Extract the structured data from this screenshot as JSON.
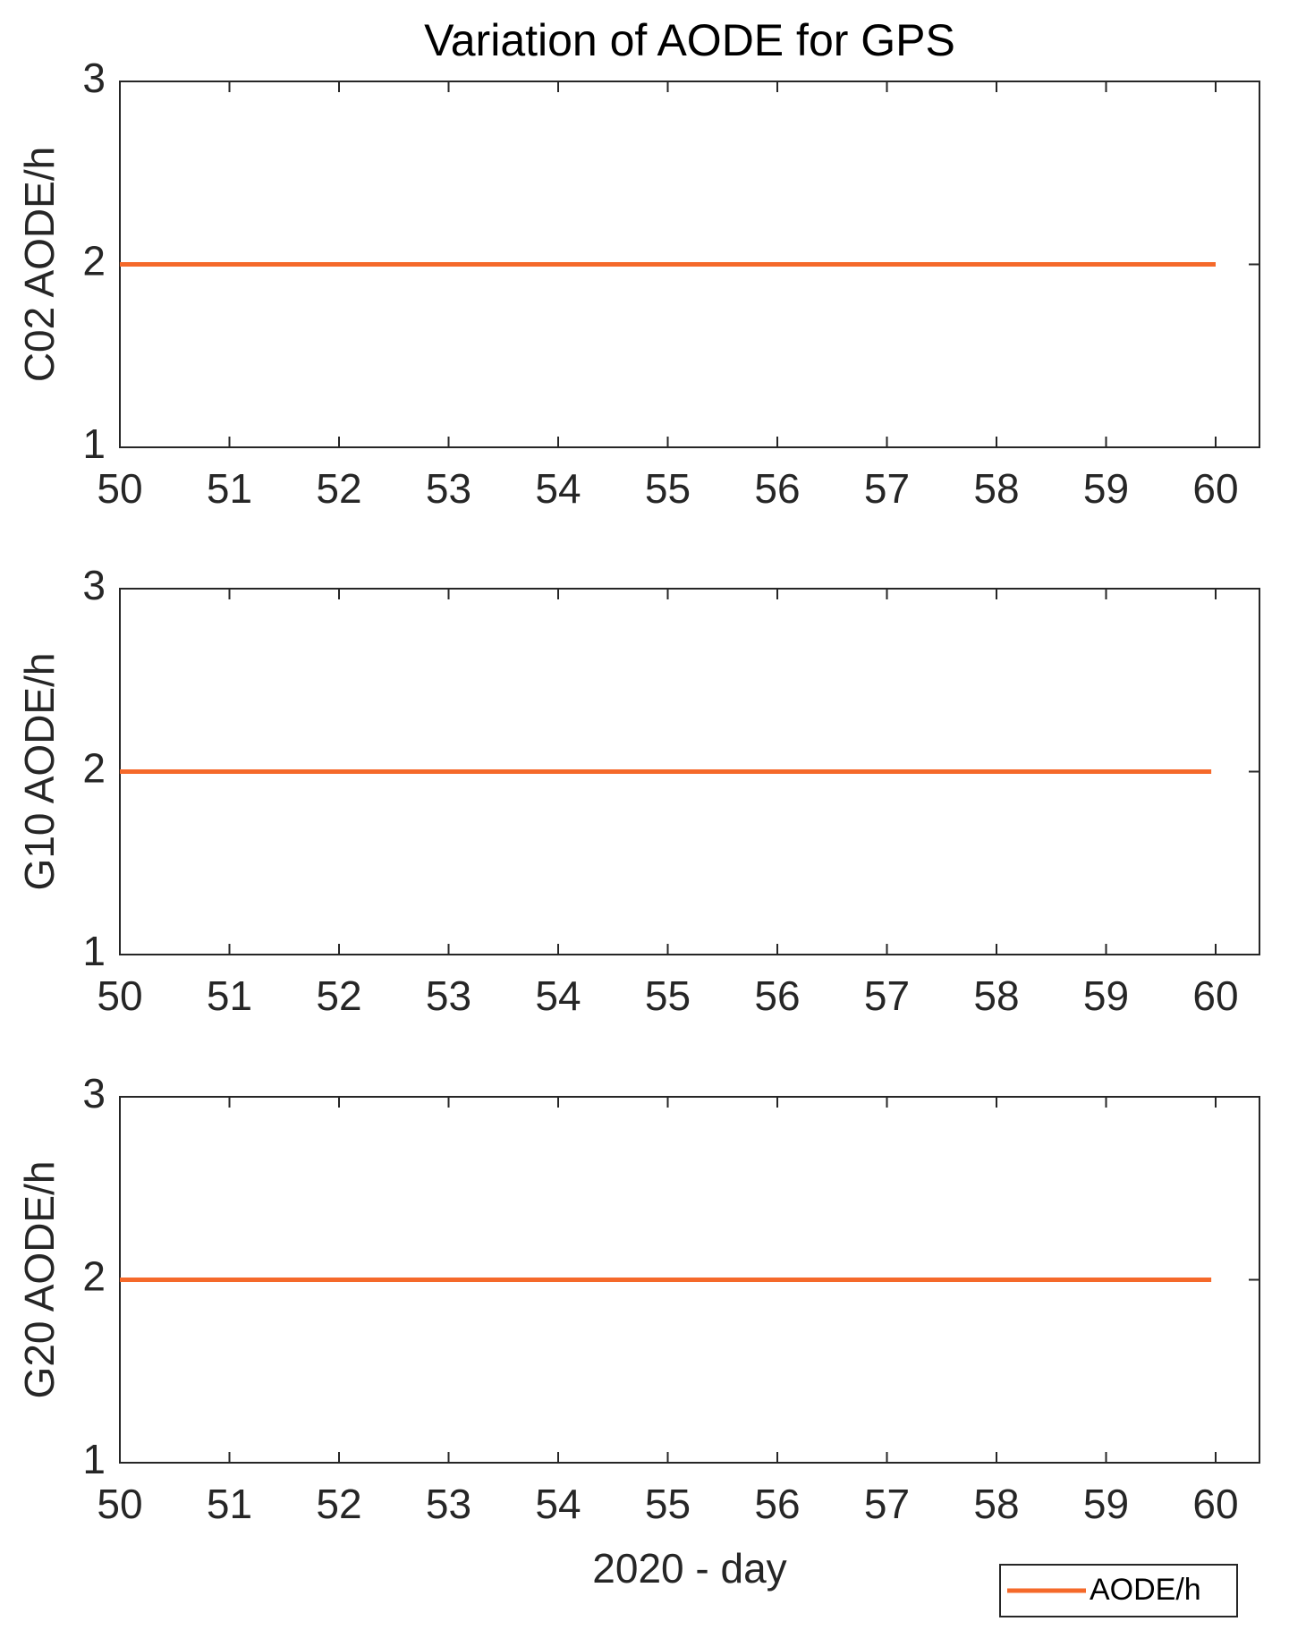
{
  "chart_data": [
    {
      "type": "line",
      "title": "Variation of AODE for GPS",
      "ylabel": "C02 AODE/h",
      "x": [
        50,
        60
      ],
      "series": [
        {
          "color": "#f5692a",
          "values": [
            2,
            2
          ]
        }
      ],
      "xlim": [
        50,
        60.4
      ],
      "xticks": [
        50,
        51,
        52,
        53,
        54,
        55,
        56,
        57,
        58,
        59,
        60
      ],
      "ylim": [
        1,
        3
      ],
      "yticks": [
        1,
        2,
        3
      ]
    },
    {
      "type": "line",
      "ylabel": "G10 AODE/h",
      "x": [
        50,
        59.96
      ],
      "series": [
        {
          "color": "#f5692a",
          "values": [
            2,
            2
          ]
        }
      ],
      "xlim": [
        50,
        60.4
      ],
      "xticks": [
        50,
        51,
        52,
        53,
        54,
        55,
        56,
        57,
        58,
        59,
        60
      ],
      "ylim": [
        1,
        3
      ],
      "yticks": [
        1,
        2,
        3
      ]
    },
    {
      "type": "line",
      "ylabel": "G20 AODE/h",
      "xlabel": "2020 - day",
      "x": [
        50,
        59.96
      ],
      "series": [
        {
          "name": "AODE/h",
          "color": "#f5692a",
          "values": [
            2,
            2
          ]
        }
      ],
      "xlim": [
        50,
        60.4
      ],
      "xticks": [
        50,
        51,
        52,
        53,
        54,
        55,
        56,
        57,
        58,
        59,
        60
      ],
      "ylim": [
        1,
        3
      ],
      "yticks": [
        1,
        2,
        3
      ]
    }
  ]
}
